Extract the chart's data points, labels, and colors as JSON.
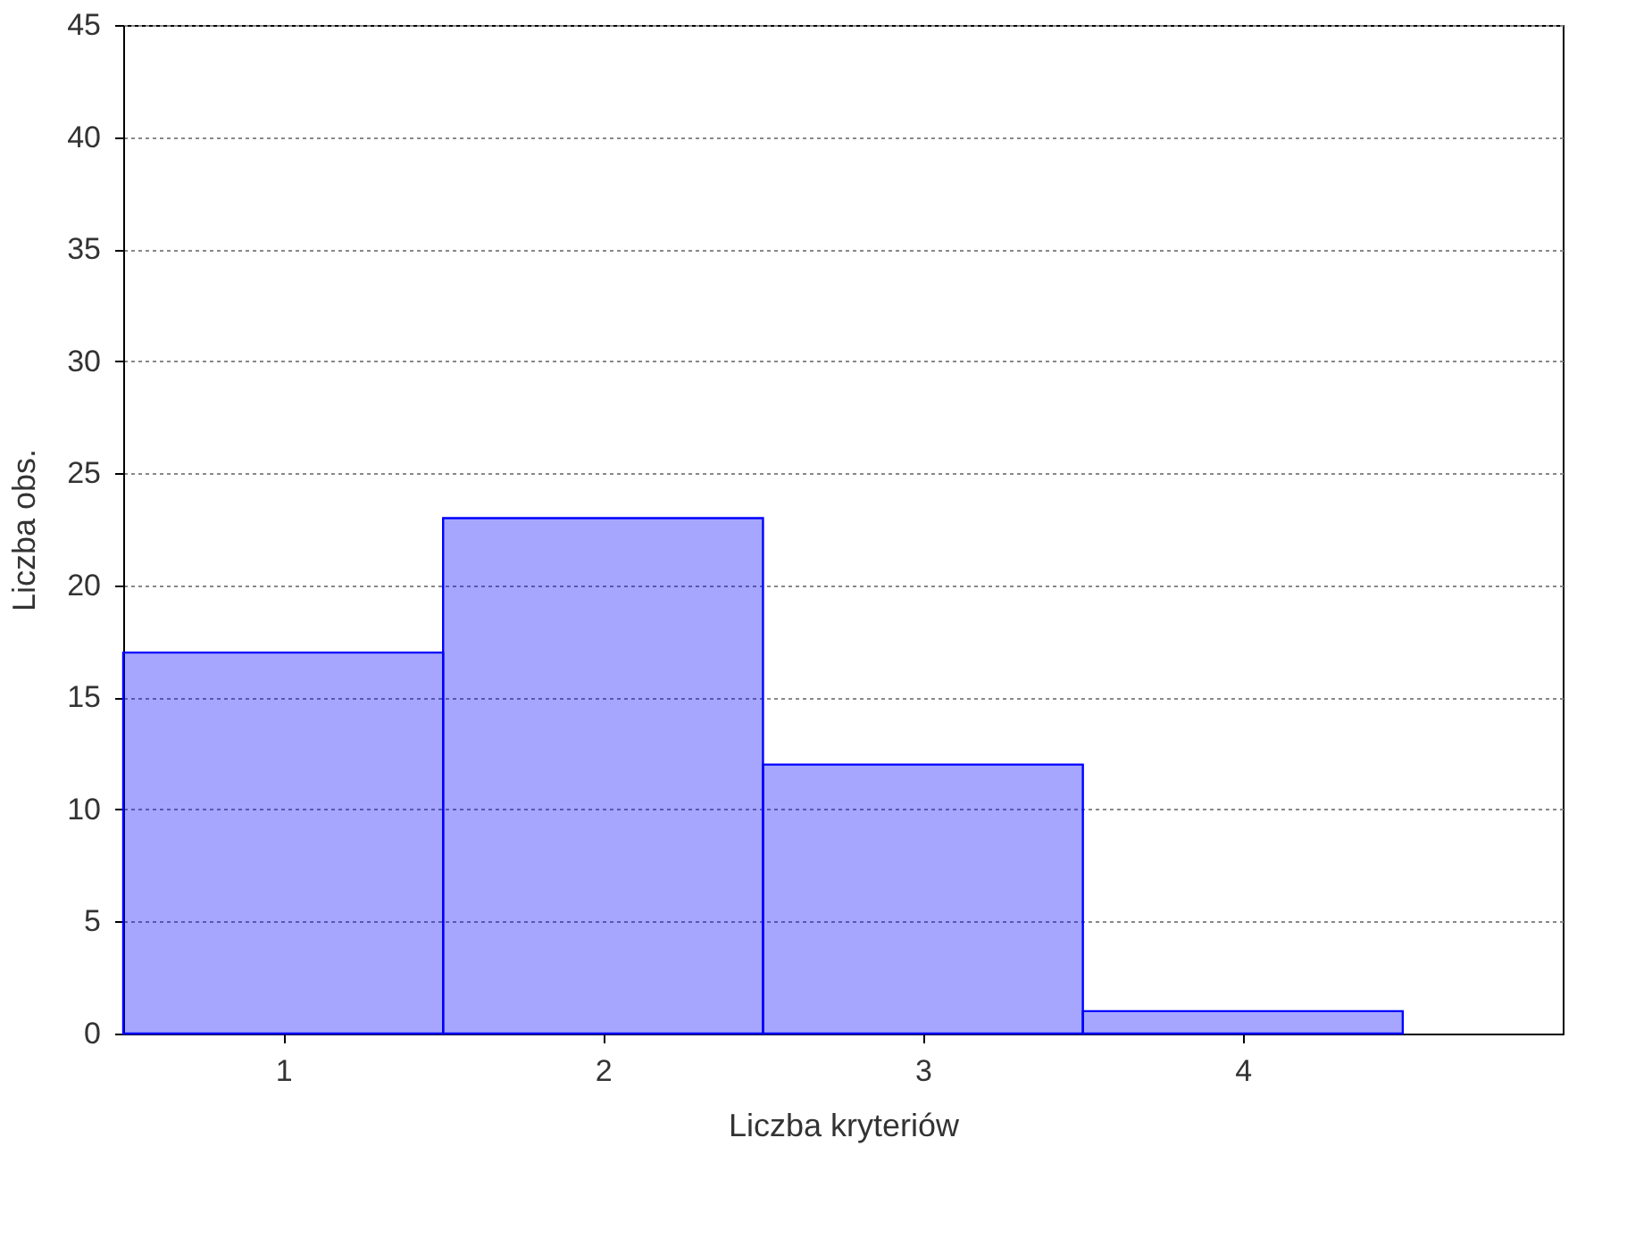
{
  "chart_data": {
    "type": "histogram",
    "xlabel": "Liczba kryteriów",
    "ylabel": "Liczba obs.",
    "bins": [
      0.5,
      1.5,
      2.5,
      3.5,
      4.5
    ],
    "values": [
      17,
      23,
      12,
      1
    ],
    "color": "#0000ff",
    "xlim": [
      0.5,
      5
    ],
    "xticks": [
      1,
      2,
      3,
      4
    ],
    "ylim": [
      0,
      45
    ],
    "yticks": [
      0,
      5,
      10,
      15,
      20,
      25,
      30,
      35,
      40,
      45
    ],
    "grid": "y"
  }
}
